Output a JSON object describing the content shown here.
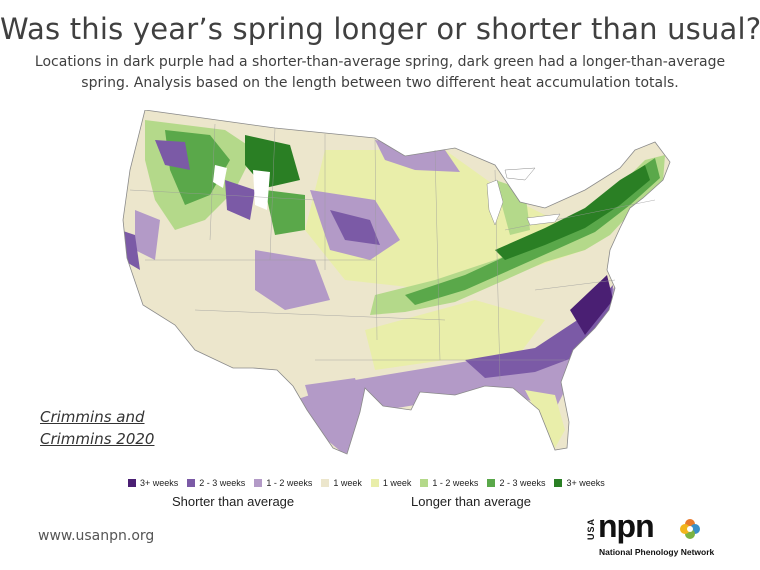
{
  "title": "Was this year’s spring longer or shorter than usual?",
  "subtitle": "Locations in dark purple had a shorter-than-average spring, dark green had a longer-than-average spring. Analysis based on the length between two different heat accumulation totals.",
  "citation": {
    "line1": "Crimmins and",
    "line2": "Crimmins 2020"
  },
  "legend": {
    "items": [
      {
        "label": "3+ weeks",
        "color": "#4a1f73"
      },
      {
        "label": "2 - 3 weeks",
        "color": "#7b5aa6"
      },
      {
        "label": "1 - 2 weeks",
        "color": "#b39ac7"
      },
      {
        "label": "1 week",
        "color": "#ece6cc"
      },
      {
        "label": "1 week",
        "color": "#e9eeaa"
      },
      {
        "label": "1 - 2 weeks",
        "color": "#b4d98a"
      },
      {
        "label": "2 - 3 weeks",
        "color": "#5aa84a"
      },
      {
        "label": "3+ weeks",
        "color": "#2a7f24"
      }
    ],
    "shorter_label": "Shorter than average",
    "longer_label": "Longer than average"
  },
  "footer": {
    "url": "www.usanpn.org"
  },
  "logo": {
    "usa": "USA",
    "npn": "npn",
    "network": "National Phenology Network"
  }
}
